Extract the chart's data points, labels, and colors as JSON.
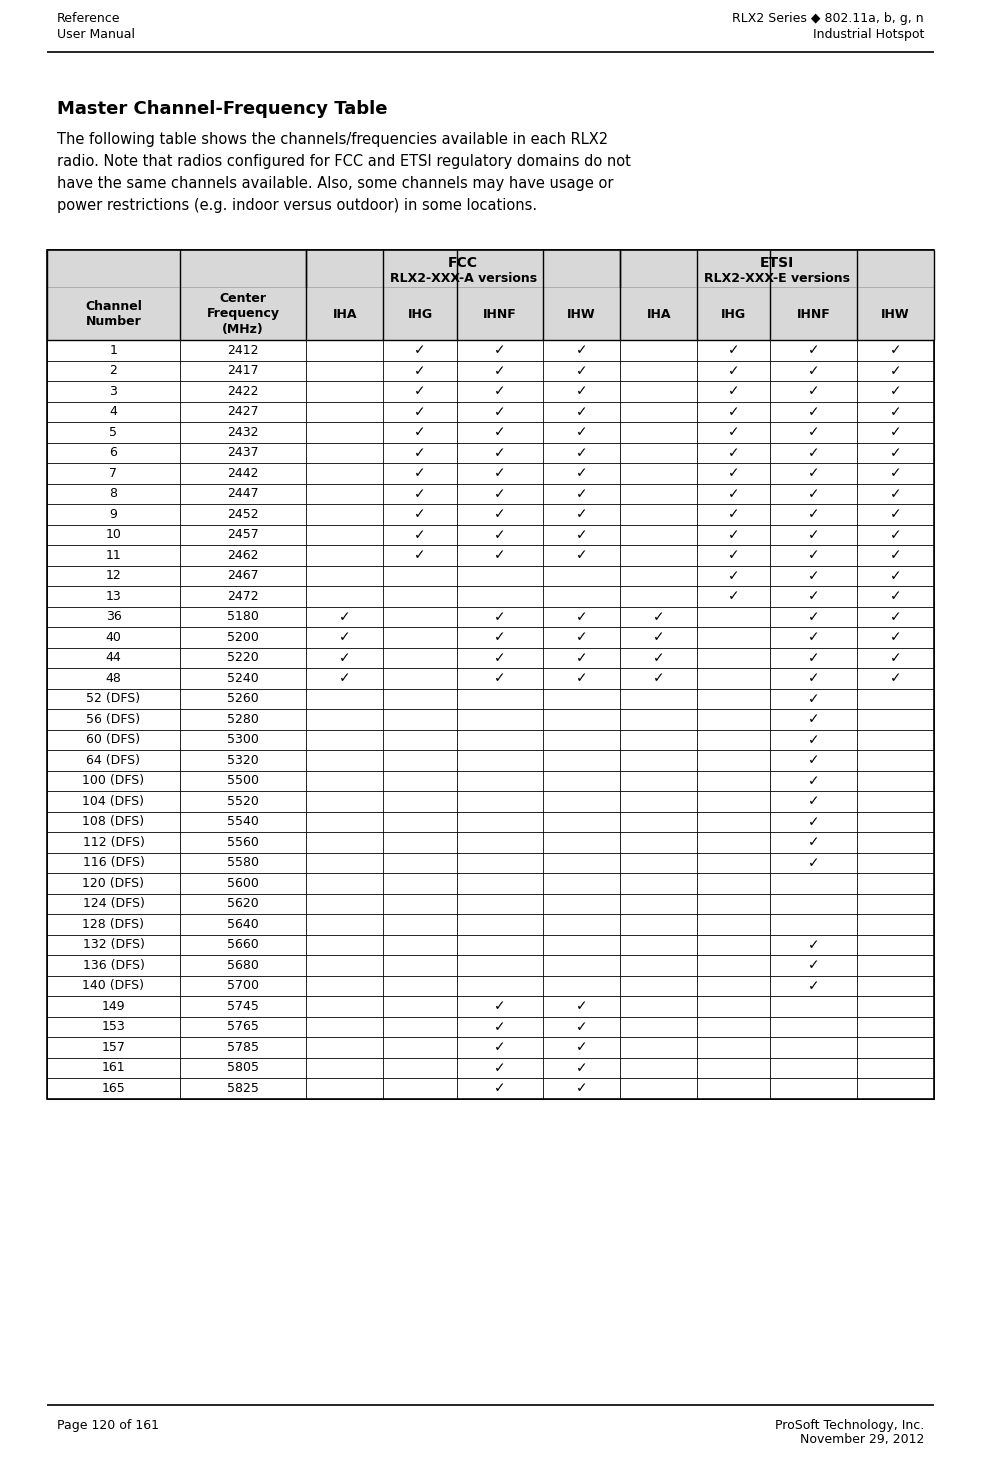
{
  "header_left_line1": "Reference",
  "header_left_line2": "User Manual",
  "header_right_line1": "RLX2 Series ◆ 802.11a, b, g, n",
  "header_right_line2": "Industrial Hotspot",
  "title": "Master Channel-Frequency Table",
  "description_lines": [
    "The following table shows the channels/frequencies available in each RLX2",
    "radio. Note that radios configured for FCC and ETSI regulatory domains do not",
    "have the same channels available. Also, some channels may have usage or",
    "power restrictions (e.g. indoor versus outdoor) in some locations."
  ],
  "footer_left": "Page 120 of 161",
  "footer_right_line1": "ProSoft Technology, Inc.",
  "footer_right_line2": "November 29, 2012",
  "col_labels": [
    "Channel\nNumber",
    "Center\nFrequency\n(MHz)",
    "IHA",
    "IHG",
    "IHNF",
    "IHW",
    "IHA",
    "IHG",
    "IHNF",
    "IHW"
  ],
  "rows": [
    [
      "1",
      "2412",
      "",
      "c",
      "c",
      "c",
      "",
      "c",
      "c",
      "c"
    ],
    [
      "2",
      "2417",
      "",
      "c",
      "c",
      "c",
      "",
      "c",
      "c",
      "c"
    ],
    [
      "3",
      "2422",
      "",
      "c",
      "c",
      "c",
      "",
      "c",
      "c",
      "c"
    ],
    [
      "4",
      "2427",
      "",
      "c",
      "c",
      "c",
      "",
      "c",
      "c",
      "c"
    ],
    [
      "5",
      "2432",
      "",
      "c",
      "c",
      "c",
      "",
      "c",
      "c",
      "c"
    ],
    [
      "6",
      "2437",
      "",
      "c",
      "c",
      "c",
      "",
      "c",
      "c",
      "c"
    ],
    [
      "7",
      "2442",
      "",
      "c",
      "c",
      "c",
      "",
      "c",
      "c",
      "c"
    ],
    [
      "8",
      "2447",
      "",
      "c",
      "c",
      "c",
      "",
      "c",
      "c",
      "c"
    ],
    [
      "9",
      "2452",
      "",
      "c",
      "c",
      "c",
      "",
      "c",
      "c",
      "c"
    ],
    [
      "10",
      "2457",
      "",
      "c",
      "c",
      "c",
      "",
      "c",
      "c",
      "c"
    ],
    [
      "11",
      "2462",
      "",
      "c",
      "c",
      "c",
      "",
      "c",
      "c",
      "c"
    ],
    [
      "12",
      "2467",
      "",
      "",
      "",
      "",
      "",
      "c",
      "c",
      "c"
    ],
    [
      "13",
      "2472",
      "",
      "",
      "",
      "",
      "",
      "c",
      "c",
      "c"
    ],
    [
      "36",
      "5180",
      "c",
      "",
      "c",
      "c",
      "c",
      "",
      "c",
      "c"
    ],
    [
      "40",
      "5200",
      "c",
      "",
      "c",
      "c",
      "c",
      "",
      "c",
      "c"
    ],
    [
      "44",
      "5220",
      "c",
      "",
      "c",
      "c",
      "c",
      "",
      "c",
      "c"
    ],
    [
      "48",
      "5240",
      "c",
      "",
      "c",
      "c",
      "c",
      "",
      "c",
      "c"
    ],
    [
      "52 (DFS)",
      "5260",
      "",
      "",
      "",
      "",
      "",
      "",
      "c",
      ""
    ],
    [
      "56 (DFS)",
      "5280",
      "",
      "",
      "",
      "",
      "",
      "",
      "c",
      ""
    ],
    [
      "60 (DFS)",
      "5300",
      "",
      "",
      "",
      "",
      "",
      "",
      "c",
      ""
    ],
    [
      "64 (DFS)",
      "5320",
      "",
      "",
      "",
      "",
      "",
      "",
      "c",
      ""
    ],
    [
      "100 (DFS)",
      "5500",
      "",
      "",
      "",
      "",
      "",
      "",
      "c",
      ""
    ],
    [
      "104 (DFS)",
      "5520",
      "",
      "",
      "",
      "",
      "",
      "",
      "c",
      ""
    ],
    [
      "108 (DFS)",
      "5540",
      "",
      "",
      "",
      "",
      "",
      "",
      "c",
      ""
    ],
    [
      "112 (DFS)",
      "5560",
      "",
      "",
      "",
      "",
      "",
      "",
      "c",
      ""
    ],
    [
      "116 (DFS)",
      "5580",
      "",
      "",
      "",
      "",
      "",
      "",
      "c",
      ""
    ],
    [
      "120 (DFS)",
      "5600",
      "",
      "",
      "",
      "",
      "",
      "",
      "",
      ""
    ],
    [
      "124 (DFS)",
      "5620",
      "",
      "",
      "",
      "",
      "",
      "",
      "",
      ""
    ],
    [
      "128 (DFS)",
      "5640",
      "",
      "",
      "",
      "",
      "",
      "",
      "",
      ""
    ],
    [
      "132 (DFS)",
      "5660",
      "",
      "",
      "",
      "",
      "",
      "",
      "c",
      ""
    ],
    [
      "136 (DFS)",
      "5680",
      "",
      "",
      "",
      "",
      "",
      "",
      "c",
      ""
    ],
    [
      "140 (DFS)",
      "5700",
      "",
      "",
      "",
      "",
      "",
      "",
      "c",
      ""
    ],
    [
      "149",
      "5745",
      "",
      "",
      "c",
      "c",
      "",
      "",
      "",
      ""
    ],
    [
      "153",
      "5765",
      "",
      "",
      "c",
      "c",
      "",
      "",
      "",
      ""
    ],
    [
      "157",
      "5785",
      "",
      "",
      "c",
      "c",
      "",
      "",
      "",
      ""
    ],
    [
      "161",
      "5805",
      "",
      "",
      "c",
      "c",
      "",
      "",
      "",
      ""
    ],
    [
      "165",
      "5825",
      "",
      "",
      "c",
      "c",
      "",
      "",
      "",
      ""
    ]
  ],
  "check_char": "✓"
}
